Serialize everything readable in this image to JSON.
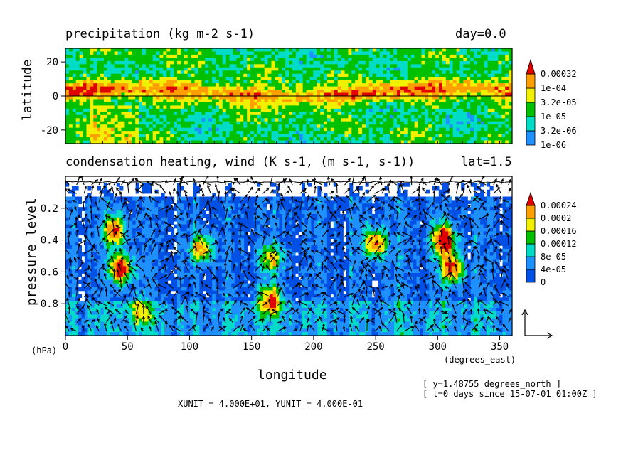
{
  "chart_data": [
    {
      "type": "heatmap",
      "title": "precipitation (kg m-2 s-1)",
      "subtitle_right": "day=0.0",
      "ylabel": "latitude",
      "xlim": [
        0,
        360
      ],
      "ylim": [
        -28,
        28
      ],
      "yticks": [
        "20",
        "0",
        "-20"
      ],
      "ytick_values": [
        20,
        0,
        -20
      ],
      "levels": [
        "1e-06",
        "3.2e-06",
        "1e-05",
        "3.2e-05",
        "1e-04",
        "0.00032"
      ],
      "colors": [
        "#1e90ff",
        "#00dcc8",
        "#00c000",
        "#f0f000",
        "#ffa000",
        "#e00000"
      ]
    },
    {
      "type": "heatmap",
      "title": "condensation heating, wind (K s-1, (m s-1, s-1))",
      "subtitle_right": "lat=1.5",
      "ylabel": "pressure level",
      "yunit": "(hPa)",
      "xlabel": "longitude",
      "xunit": "(degrees_east)",
      "xlim": [
        0,
        360
      ],
      "ylim": [
        1.0,
        0.0
      ],
      "xticks": [
        "0",
        "50",
        "100",
        "150",
        "200",
        "250",
        "300",
        "350"
      ],
      "xtick_values": [
        0,
        50,
        100,
        150,
        200,
        250,
        300,
        350
      ],
      "yticks": [
        "0.2",
        "0.4",
        "0.6",
        "0.8"
      ],
      "ytick_values": [
        0.2,
        0.4,
        0.6,
        0.8
      ],
      "levels": [
        "0",
        "4e-05",
        "8e-05",
        "0.00012",
        "0.00016",
        "0.0002",
        "0.00024"
      ],
      "colors": [
        "#0050e6",
        "#1e90ff",
        "#00dcc8",
        "#00c000",
        "#f0f000",
        "#ffa000",
        "#e00000"
      ]
    }
  ],
  "footer": {
    "units": "XUNIT = 4.000E+01, YUNIT = 4.000E-01",
    "y_info": "[ y=1.48755 degrees_north ]",
    "t_info": "[ t=0 days since 15-07-01 01:00Z ]"
  }
}
